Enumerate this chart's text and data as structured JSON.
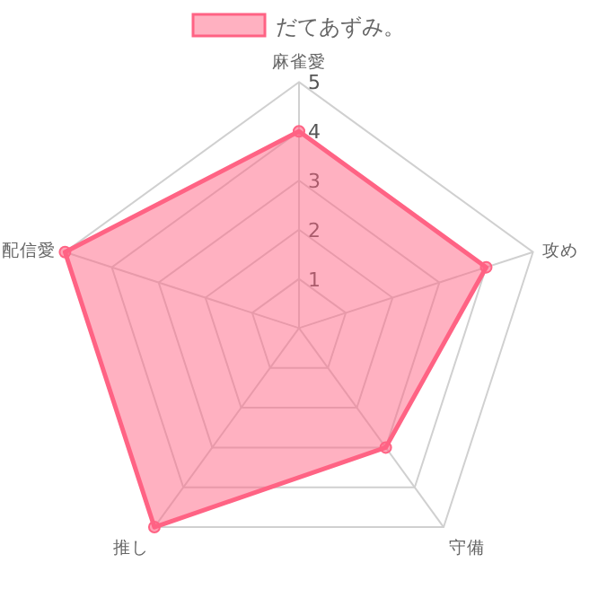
{
  "chart_data": {
    "type": "radar",
    "categories": [
      "麻雀愛",
      "攻め",
      "守備",
      "推し",
      "配信愛"
    ],
    "series": [
      {
        "name": "だてあずみ。",
        "color": "#ff6384",
        "values": [
          4,
          4,
          3,
          5,
          5
        ]
      }
    ],
    "ylim": [
      0,
      5
    ],
    "yticks": [
      1,
      2,
      3,
      4,
      5
    ],
    "grid": true,
    "legend": "top",
    "marker": "circle"
  }
}
